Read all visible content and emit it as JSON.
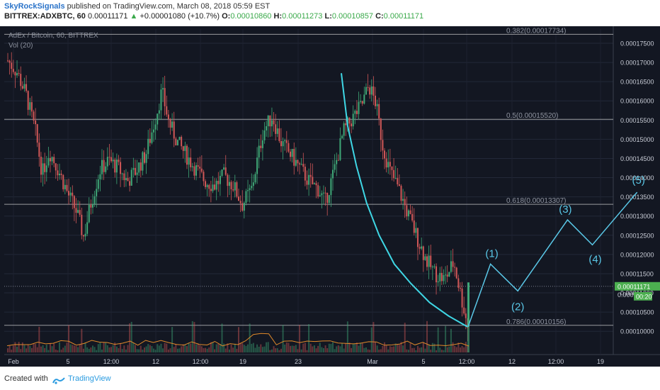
{
  "header": {
    "author": "SkyRockSignals",
    "published": "published on TradingView.com, March 08, 2018 05:59 EST",
    "symbol": "BITTREX:ADXBTC, 60",
    "last": "0.00011171",
    "change_arrow": "▲",
    "change": "+0.00001080 (+10.7%)",
    "o_label": "O:",
    "o_value": "0.00010860",
    "h_label": "H:",
    "h_value": "0.00011273",
    "l_label": "L:",
    "l_value": "0.00010857",
    "c_label": "C:",
    "c_value": "0.00011171"
  },
  "legend": {
    "pair": "AdEx / Bitcoin, 60, BITTREX",
    "volume": "Vol (20)"
  },
  "footer": {
    "created_with": "Created with",
    "brand": "TradingView"
  },
  "colors": {
    "background": "#131722",
    "up": "#3fa877",
    "down": "#d05757",
    "curve": "#3fd7e5",
    "wave": "#5ac8e8",
    "price_tag": "#4caf50",
    "fib_line": "#c8c8c8",
    "volume_line": "#e0892a"
  },
  "chart_data": {
    "type": "candlestick",
    "x_ticks": [
      "Feb",
      "5",
      "12:00",
      "12",
      "12:00",
      "19",
      "23",
      "Mar",
      "5",
      "12:00",
      "12",
      "12:00",
      "19"
    ],
    "y_ticks": [
      "0.00017500",
      "0.00017000",
      "0.00016500",
      "0.00016000",
      "0.00015500",
      "0.00015000",
      "0.00014500",
      "0.00014000",
      "0.00013500",
      "0.00013000",
      "0.00012500",
      "0.00012000",
      "0.00011500",
      "0.00011000",
      "0.00010500",
      "0.00010000"
    ],
    "ylim": [
      9.77e-05,
      0.0001797
    ],
    "price_label": "0.00011171",
    "countdown_label": "00:20",
    "price_partial_label": "0.00011000",
    "fib_levels": [
      {
        "label": "0.382(0.00017734)",
        "price": 0.00017734
      },
      {
        "label": "0.5(0.00015520)",
        "price": 0.0001552
      },
      {
        "label": "0.618(0.00013307)",
        "price": 0.00013307
      },
      {
        "label": "0.786(0.00010156)",
        "price": 0.00010156
      }
    ],
    "series": [
      {
        "kind": "price_path",
        "points": [
          [
            0,
            0.0001705
          ],
          [
            0.02,
            0.0001675
          ],
          [
            0.04,
            0.0001615
          ],
          [
            0.06,
            0.000152
          ],
          [
            0.075,
            0.000141
          ],
          [
            0.09,
            0.000147
          ],
          [
            0.11,
            0.000142
          ],
          [
            0.13,
            0.000136
          ],
          [
            0.15,
            0.000131
          ],
          [
            0.165,
            0.0001245
          ],
          [
            0.18,
            0.000133
          ],
          [
            0.2,
            0.000142
          ],
          [
            0.22,
            0.0001445
          ],
          [
            0.24,
            0.0001425
          ],
          [
            0.26,
            0.000139
          ],
          [
            0.28,
            0.000142
          ],
          [
            0.3,
            0.000146
          ],
          [
            0.32,
            0.000155
          ],
          [
            0.335,
            0.0001625
          ],
          [
            0.35,
            0.0001545
          ],
          [
            0.37,
            0.000149
          ],
          [
            0.39,
            0.0001455
          ],
          [
            0.41,
            0.000142
          ],
          [
            0.43,
            0.000139
          ],
          [
            0.45,
            0.000138
          ],
          [
            0.47,
            0.0001405
          ],
          [
            0.49,
            0.000138
          ],
          [
            0.51,
            0.000133
          ],
          [
            0.53,
            0.000137
          ],
          [
            0.555,
            0.000152
          ],
          [
            0.575,
            0.000156
          ],
          [
            0.595,
            0.000149
          ],
          [
            0.615,
            0.000146
          ],
          [
            0.635,
            0.0001425
          ],
          [
            0.655,
            0.000139
          ],
          [
            0.675,
            0.000137
          ],
          [
            0.69,
            0.0001335
          ],
          [
            0.71,
            0.000142
          ],
          [
            0.73,
            0.000152
          ],
          [
            0.75,
            0.0001555
          ],
          [
            0.77,
            0.000159
          ],
          [
            0.785,
            0.000164
          ],
          [
            0.8,
            0.0001595
          ],
          [
            0.815,
            0.0001485
          ],
          [
            0.83,
            0.000142
          ],
          [
            0.85,
            0.000137
          ],
          [
            0.87,
            0.0001305
          ],
          [
            0.89,
            0.0001245
          ],
          [
            0.91,
            0.0001185
          ],
          [
            0.93,
            0.000115
          ],
          [
            0.95,
            0.0001135
          ],
          [
            0.97,
            0.000118
          ],
          [
            0.985,
            0.0001095
          ],
          [
            1.0,
            0.0001015
          ]
        ]
      },
      {
        "kind": "decay_curve",
        "points": [
          [
            0,
            0.0001672
          ],
          [
            0.05,
            0.0001535
          ],
          [
            0.12,
            0.000143
          ],
          [
            0.2,
            0.0001335
          ],
          [
            0.3,
            0.000125
          ],
          [
            0.42,
            0.0001175
          ],
          [
            0.55,
            0.0001125
          ],
          [
            0.7,
            0.0001075
          ],
          [
            0.85,
            0.000104
          ],
          [
            1.0,
            0.0001012
          ]
        ]
      },
      {
        "kind": "elliott_wave",
        "points": [
          [
            0,
            0.0001012
          ],
          [
            0.09,
            0.0001175
          ],
          [
            0.2,
            0.0001105
          ],
          [
            0.4,
            0.000129
          ],
          [
            0.5,
            0.0001225
          ],
          [
            0.68,
            0.0001362
          ]
        ],
        "labels": [
          "(1)",
          "(2)",
          "(3)",
          "(4)",
          "(5)"
        ]
      }
    ]
  }
}
